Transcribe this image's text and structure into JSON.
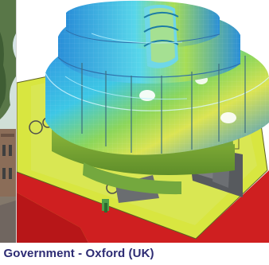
{
  "caption": {
    "text": "/ Government - Oxford (UK)"
  },
  "images": {
    "left_photo": "building-exterior-photo",
    "main_render": "finite-element-slab-model"
  },
  "colors": {
    "caption_text": "#2d2b73",
    "base_slab": "#d8e640",
    "lower_plinth": "#cf1f20",
    "core": "#5a5d61",
    "stress_blue": "#2b8bd8",
    "stress_cyan": "#44d6e6",
    "stress_green": "#8fd35a",
    "stress_yellow": "#e5e84c"
  }
}
